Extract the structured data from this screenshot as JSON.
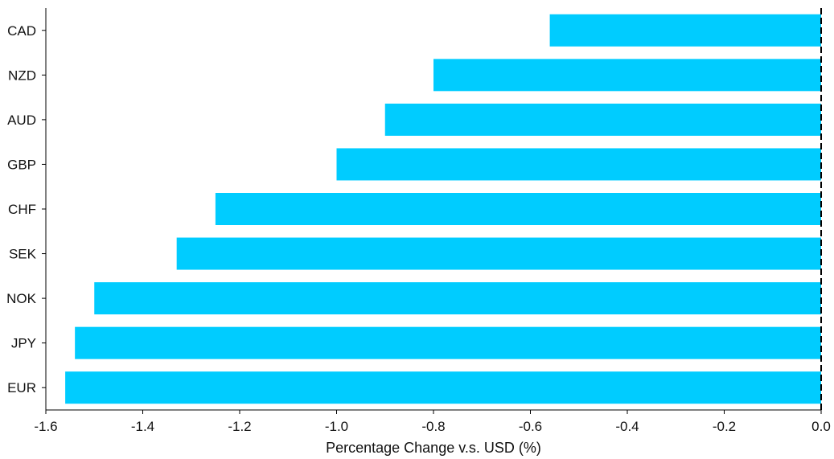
{
  "chart_data": {
    "type": "bar",
    "orientation": "horizontal",
    "categories": [
      "CAD",
      "NZD",
      "AUD",
      "GBP",
      "CHF",
      "SEK",
      "NOK",
      "JPY",
      "EUR"
    ],
    "values": [
      -0.56,
      -0.8,
      -0.9,
      -1.0,
      -1.25,
      -1.33,
      -1.5,
      -1.54,
      -1.56
    ],
    "xlabel": "Percentage Change v.s. USD (%)",
    "ylabel": "",
    "xlim": [
      -1.6,
      0.0
    ],
    "xticks": [
      -1.6,
      -1.4,
      -1.2,
      -1.0,
      -0.8,
      -0.6,
      -0.4,
      -0.2,
      0.0
    ],
    "xtick_labels": [
      "-1.6",
      "-1.4",
      "-1.2",
      "-1.0",
      "-0.8",
      "-0.6",
      "-0.4",
      "-0.2",
      "0.0"
    ],
    "grid": false,
    "bar_color": "#00CCFF",
    "zero_line_color": "#000000"
  }
}
